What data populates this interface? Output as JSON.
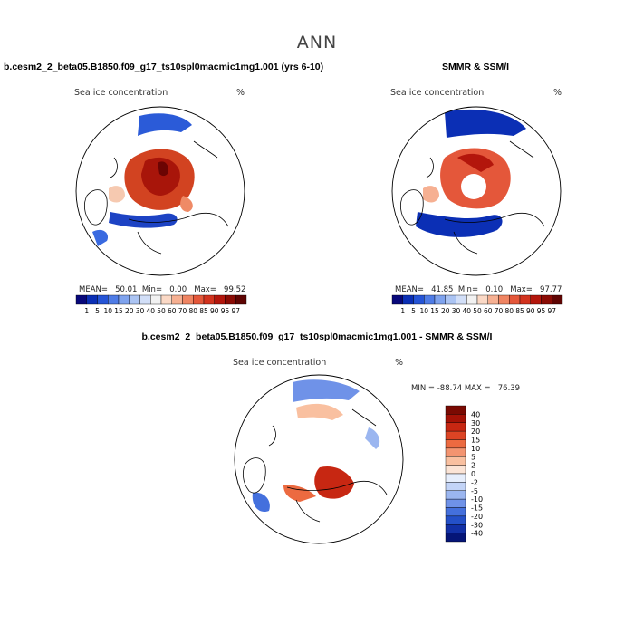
{
  "main_title": "ANN",
  "panels": [
    {
      "title": "b.cesm2_2_beta05.B1850.f09_g17_ts10spl0macmic1mg1.001 (yrs 6-10)",
      "variable": "Sea ice concentration",
      "units": "%",
      "stats": {
        "mean_label": "MEAN=",
        "mean": "50.01",
        "min_label": "Min=",
        "min": "0.00",
        "max_label": "Max=",
        "max": "99.52"
      }
    },
    {
      "title": "SMMR & SSM/I",
      "variable": "Sea ice concentration",
      "units": "%",
      "stats": {
        "mean_label": "MEAN=",
        "mean": "41.85",
        "min_label": "Min=",
        "min": "0.10",
        "max_label": "Max=",
        "max": "97.77"
      }
    },
    {
      "title": "b.cesm2_2_beta05.B1850.f09_g17_ts10spl0macmic1mg1.001 - SMMR & SSM/I",
      "variable": "Sea ice concentration",
      "units": "%",
      "stats": {
        "min_label": "MIN =",
        "min": "-88.74",
        "max_label": "MAX =",
        "max": "76.39"
      }
    }
  ],
  "colorbar_abs": {
    "labels": [
      "1",
      "5",
      "10",
      "15",
      "20",
      "30",
      "40",
      "50",
      "60",
      "70",
      "80",
      "85",
      "90",
      "95",
      "97"
    ],
    "colors": [
      "#08087a",
      "#0b2fb5",
      "#2554d6",
      "#4f7ce6",
      "#7fa3ee",
      "#abc4f3",
      "#d2dff8",
      "#f2f2f2",
      "#fbd9c6",
      "#f6b092",
      "#ef8462",
      "#e4573a",
      "#d2331e",
      "#b3160c",
      "#8a0b04",
      "#5e0402"
    ]
  },
  "colorbar_diff": {
    "labels": [
      "40",
      "30",
      "20",
      "15",
      "10",
      "5",
      "2",
      "0",
      "-2",
      "-5",
      "-10",
      "-15",
      "-20",
      "-30",
      "-40"
    ],
    "colors": [
      "#7a0a02",
      "#a41206",
      "#c72712",
      "#dc4424",
      "#ec6a40",
      "#f39470",
      "#f9c0a0",
      "#fbe4d6",
      "#e6eefc",
      "#c3d4f7",
      "#9bb6f0",
      "#6f92e8",
      "#4470dd",
      "#2450c8",
      "#1230a6",
      "#051577"
    ]
  },
  "chart_data": [
    {
      "type": "heatmap",
      "title": "b.cesm2_2_beta05.B1850.f09_g17_ts10spl0macmic1mg1.001 (yrs 6-10)",
      "projection": "north polar stereographic",
      "variable": "Sea ice concentration",
      "units": "%",
      "mean": 50.01,
      "min": 0.0,
      "max": 99.52,
      "levels": [
        1,
        5,
        10,
        15,
        20,
        30,
        40,
        50,
        60,
        70,
        80,
        85,
        90,
        95,
        97
      ]
    },
    {
      "type": "heatmap",
      "title": "SMMR & SSM/I",
      "projection": "north polar stereographic",
      "variable": "Sea ice concentration",
      "units": "%",
      "mean": 41.85,
      "min": 0.1,
      "max": 97.77,
      "levels": [
        1,
        5,
        10,
        15,
        20,
        30,
        40,
        50,
        60,
        70,
        80,
        85,
        90,
        95,
        97
      ]
    },
    {
      "type": "heatmap",
      "title": "b.cesm2_2_beta05.B1850.f09_g17_ts10spl0macmic1mg1.001 - SMMR & SSM/I",
      "projection": "north polar stereographic",
      "variable": "Sea ice concentration",
      "units": "%",
      "min": -88.74,
      "max": 76.39,
      "levels": [
        -40,
        -30,
        -20,
        -15,
        -10,
        -5,
        -2,
        0,
        2,
        5,
        10,
        15,
        20,
        30,
        40
      ]
    }
  ]
}
